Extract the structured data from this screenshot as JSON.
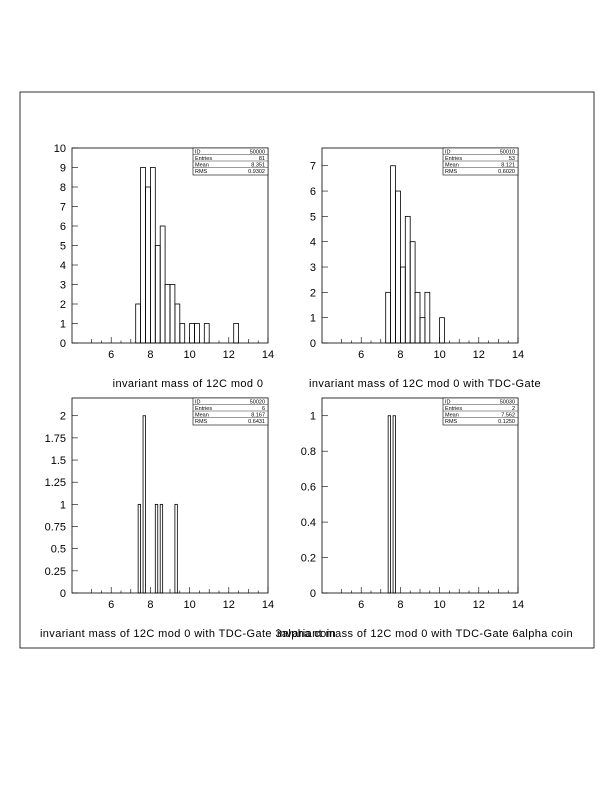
{
  "page": {
    "frame_color": "#000000",
    "background": "#ffffff",
    "line_color": "#000000"
  },
  "chart_data": [
    {
      "type": "histogram",
      "xlabel": "invariant mass of 12C mod 0",
      "xlim": [
        4,
        14
      ],
      "x_ticks": [
        6,
        8,
        10,
        12,
        14
      ],
      "ylim": [
        0,
        10
      ],
      "y_ticks": [
        0,
        1,
        2,
        3,
        4,
        5,
        6,
        7,
        8,
        9,
        10
      ],
      "bin_width": 0.25,
      "bins": [
        {
          "x": 7.25,
          "y": 2
        },
        {
          "x": 7.5,
          "y": 9
        },
        {
          "x": 7.75,
          "y": 8
        },
        {
          "x": 8.0,
          "y": 9
        },
        {
          "x": 8.25,
          "y": 5
        },
        {
          "x": 8.5,
          "y": 6
        },
        {
          "x": 8.75,
          "y": 3
        },
        {
          "x": 9.0,
          "y": 3
        },
        {
          "x": 9.25,
          "y": 2
        },
        {
          "x": 9.5,
          "y": 1
        },
        {
          "x": 9.75,
          "y": 0
        },
        {
          "x": 10.0,
          "y": 1
        },
        {
          "x": 10.25,
          "y": 1
        },
        {
          "x": 10.5,
          "y": 0
        },
        {
          "x": 10.75,
          "y": 1
        },
        {
          "x": 11.0,
          "y": 0
        },
        {
          "x": 12.25,
          "y": 1
        }
      ],
      "stats": [
        {
          "label": "ID",
          "value": "50000"
        },
        {
          "label": "Entries",
          "value": "81"
        },
        {
          "label": "Mean",
          "value": "8.351"
        },
        {
          "label": "RMS",
          "value": "0.9302"
        }
      ]
    },
    {
      "type": "histogram",
      "xlabel": "invariant mass of 12C mod 0 with TDC-Gate",
      "xlim": [
        4,
        14
      ],
      "x_ticks": [
        6,
        8,
        10,
        12,
        14
      ],
      "ylim": [
        0,
        7.7
      ],
      "y_ticks": [
        0,
        1,
        2,
        3,
        4,
        5,
        6,
        7
      ],
      "bin_width": 0.25,
      "bins": [
        {
          "x": 7.25,
          "y": 2
        },
        {
          "x": 7.5,
          "y": 7
        },
        {
          "x": 7.75,
          "y": 6
        },
        {
          "x": 8.0,
          "y": 3
        },
        {
          "x": 8.25,
          "y": 5
        },
        {
          "x": 8.5,
          "y": 4
        },
        {
          "x": 8.75,
          "y": 2
        },
        {
          "x": 9.0,
          "y": 1
        },
        {
          "x": 9.25,
          "y": 2
        },
        {
          "x": 9.5,
          "y": 0
        },
        {
          "x": 9.75,
          "y": 0
        },
        {
          "x": 10.0,
          "y": 1
        }
      ],
      "stats": [
        {
          "label": "ID",
          "value": "50010"
        },
        {
          "label": "Entries",
          "value": "53"
        },
        {
          "label": "Mean",
          "value": "8.121"
        },
        {
          "label": "RMS",
          "value": "0.6020"
        }
      ]
    },
    {
      "type": "histogram",
      "xlabel": "invariant mass of 12C mod 0 with TDC-Gate 3alpha coin",
      "xlim": [
        4,
        14
      ],
      "x_ticks": [
        6,
        8,
        10,
        12,
        14
      ],
      "ylim": [
        0,
        2.2
      ],
      "y_ticks": [
        "0",
        "0.25",
        "0.5",
        "0.75",
        "1",
        "1.25",
        "1.5",
        "1.75",
        "2"
      ],
      "bin_width": 0.125,
      "bins": [
        {
          "x": 7.375,
          "y": 1
        },
        {
          "x": 7.625,
          "y": 2
        },
        {
          "x": 8.25,
          "y": 1
        },
        {
          "x": 8.5,
          "y": 1
        },
        {
          "x": 9.25,
          "y": 1
        }
      ],
      "stats": [
        {
          "label": "ID",
          "value": "50020"
        },
        {
          "label": "Entries",
          "value": "6"
        },
        {
          "label": "Mean",
          "value": "8.167"
        },
        {
          "label": "RMS",
          "value": "0.6431"
        }
      ]
    },
    {
      "type": "histogram",
      "xlabel": "invariant mass of 12C mod 0 with TDC-Gate 6alpha coin",
      "xlim": [
        4,
        14
      ],
      "x_ticks": [
        6,
        8,
        10,
        12,
        14
      ],
      "ylim": [
        0,
        1.1
      ],
      "y_ticks": [
        "0",
        "0.2",
        "0.4",
        "0.6",
        "0.8",
        "1"
      ],
      "bin_width": 0.125,
      "bins": [
        {
          "x": 7.375,
          "y": 1
        },
        {
          "x": 7.625,
          "y": 1
        }
      ],
      "stats": [
        {
          "label": "ID",
          "value": "50030"
        },
        {
          "label": "Entries",
          "value": "2"
        },
        {
          "label": "Mean",
          "value": "7.562"
        },
        {
          "label": "RMS",
          "value": "0.1250"
        }
      ]
    }
  ]
}
